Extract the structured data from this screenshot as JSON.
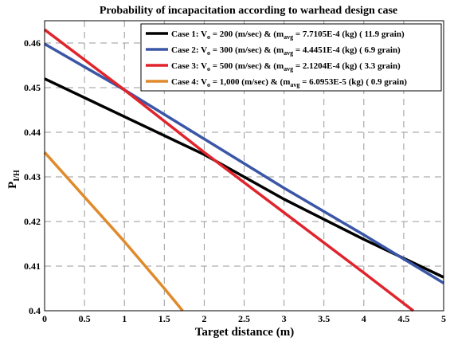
{
  "chart_data": {
    "type": "line",
    "title": "Probability of incapacitation according to warhead design case",
    "xlabel": "Target distance (m)",
    "ylabel": "P",
    "ylabel_sub": "I/H",
    "xlim": [
      0,
      5
    ],
    "ylim": [
      0.4,
      0.465
    ],
    "xticks": [
      "0",
      "0.5",
      "1",
      "1.5",
      "2",
      "2.5",
      "3",
      "3.5",
      "4",
      "4.5",
      "5"
    ],
    "yticks": [
      "0.4",
      "0.41",
      "0.42",
      "0.43",
      "0.44",
      "0.45",
      "0.46"
    ],
    "grid": true,
    "legend_position": "top-right",
    "series": [
      {
        "color": "#000000",
        "legend": {
          "a": "Case 1: V",
          "b": "o",
          "c": " =   200 (m/sec) & (m",
          "d": "avg",
          "e": " = 7.7105E-4 (kg) ( 11.9 grain)"
        },
        "x": [
          0,
          1,
          2,
          3,
          4,
          5
        ],
        "y": [
          0.452,
          0.4435,
          0.435,
          0.425,
          0.416,
          0.4075
        ]
      },
      {
        "color": "#3a56a6",
        "legend": {
          "a": "Case 2: V",
          "b": "o",
          "c": " =   300 (m/sec) & (m",
          "d": "avg",
          "e": " = 4.4451E-4 (kg) ( 6.9 grain)"
        },
        "x": [
          0,
          1,
          2,
          3,
          4,
          5
        ],
        "y": [
          0.4598,
          0.4495,
          0.4385,
          0.4275,
          0.417,
          0.4062
        ]
      },
      {
        "color": "#e0242c",
        "legend": {
          "a": "Case 3: V",
          "b": "o",
          "c": " =   500  (m/sec) & (m",
          "d": "avg",
          "e": " = 2.1204E-4 (kg) ( 3.3 grain)"
        },
        "x": [
          0,
          1,
          2,
          3,
          4,
          4.62
        ],
        "y": [
          0.463,
          0.4495,
          0.4355,
          0.422,
          0.4085,
          0.4
        ]
      },
      {
        "color": "#e08a2c",
        "legend": {
          "a": "Case 4: V",
          "b": "o",
          "c": " = 1,000 (m/sec) & (m",
          "d": "avg",
          "e": " = 6.0953E-5 (kg) ( 0.9 grain)"
        },
        "x": [
          0,
          0.5,
          1,
          1.5,
          1.73
        ],
        "y": [
          0.4355,
          0.4255,
          0.4155,
          0.405,
          0.4
        ]
      }
    ]
  }
}
